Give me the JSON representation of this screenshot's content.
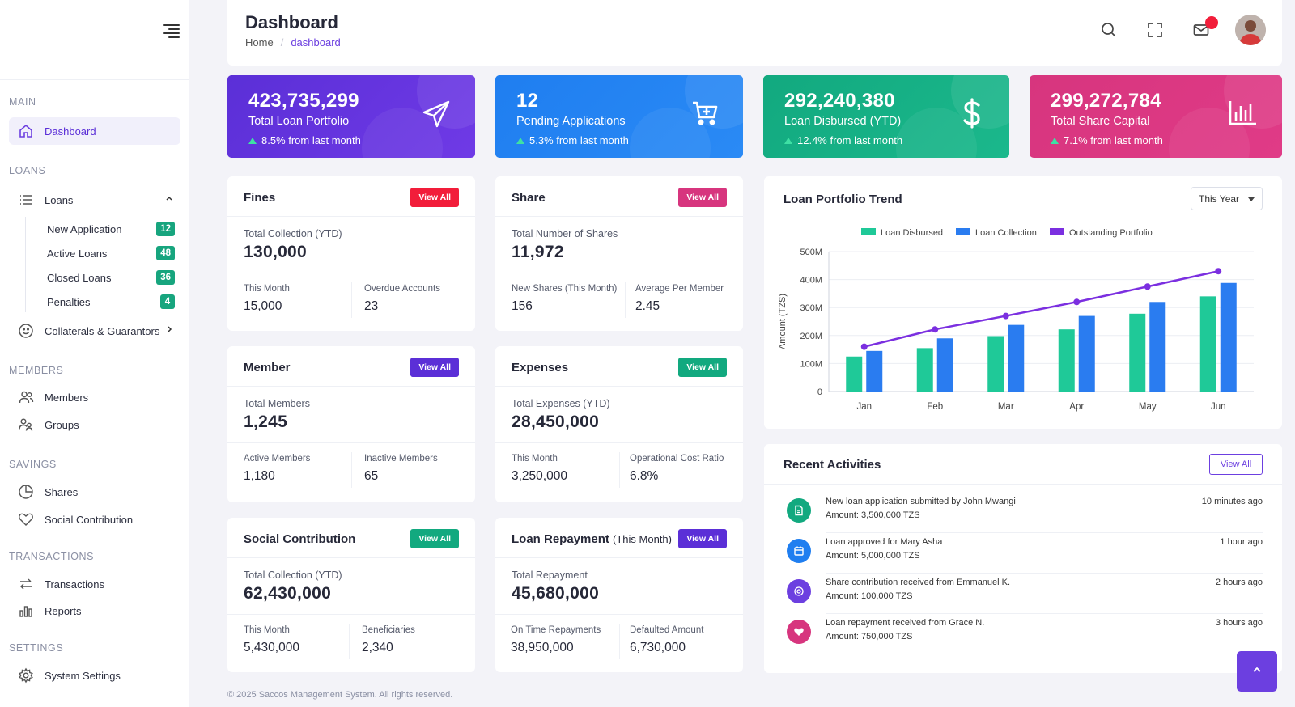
{
  "sidebar": {
    "sections": {
      "main": "MAIN",
      "loans": "LOANS",
      "members": "MEMBERS",
      "savings": "SAVINGS",
      "transactions": "TRANSACTIONS",
      "settings": "SETTINGS"
    },
    "items": {
      "dashboard": "Dashboard",
      "loans": "Loans",
      "collaterals": "Collaterals & Guarantors",
      "members": "Members",
      "groups": "Groups",
      "shares": "Shares",
      "social": "Social Contribution",
      "transactions": "Transactions",
      "reports": "Reports",
      "system_settings": "System Settings"
    },
    "loan_subitems": [
      {
        "label": "New Application",
        "count": "12"
      },
      {
        "label": "Active Loans",
        "count": "48"
      },
      {
        "label": "Closed Loans",
        "count": "36"
      },
      {
        "label": "Penalties",
        "count": "4"
      }
    ]
  },
  "header": {
    "title": "Dashboard",
    "breadcrumb_home": "Home",
    "breadcrumb_sep": "/",
    "breadcrumb_current": "dashboard"
  },
  "stats": [
    {
      "value": "423,735,299",
      "label": "Total Loan Portfolio",
      "change": "8.5% from last month",
      "icon": "paper-plane-icon",
      "color_from": "#5b2fd7",
      "color_to": "#6f3ae6"
    },
    {
      "value": "12",
      "label": "Pending Applications",
      "change": "5.3% from last month",
      "icon": "cart-plus-icon",
      "color_from": "#1f7ef0",
      "color_to": "#2a8af5"
    },
    {
      "value": "292,240,380",
      "label": "Loan Disbursed (YTD)",
      "change": "12.4% from last month",
      "icon": "dollar-icon",
      "color_from": "#12a97f",
      "color_to": "#1bb88c"
    },
    {
      "value": "299,272,784",
      "label": "Total Share Capital",
      "change": "7.1% from last month",
      "icon": "bar-chart-icon",
      "color_from": "#d7357e",
      "color_to": "#e03b87"
    }
  ],
  "cards": {
    "fines": {
      "title": "Fines",
      "btn": "View All",
      "total_label": "Total Collection (YTD)",
      "total": "130,000",
      "s1_label": "This Month",
      "s1": "15,000",
      "s2_label": "Overdue Accounts",
      "s2": "23"
    },
    "share": {
      "title": "Share",
      "btn": "View All",
      "total_label": "Total Number of Shares",
      "total": "11,972",
      "s1_label": "New Shares (This Month)",
      "s1": "156",
      "s2_label": "Average Per Member",
      "s2": "2.45"
    },
    "member": {
      "title": "Member",
      "btn": "View All",
      "total_label": "Total Members",
      "total": "1,245",
      "s1_label": "Active Members",
      "s1": "1,180",
      "s2_label": "Inactive Members",
      "s2": "65"
    },
    "expenses": {
      "title": "Expenses",
      "btn": "View All",
      "total_label": "Total Expenses (YTD)",
      "total": "28,450,000",
      "s1_label": "This Month",
      "s1": "3,250,000",
      "s2_label": "Operational Cost Ratio",
      "s2": "6.8%"
    },
    "social": {
      "title": "Social Contribution",
      "btn": "View All",
      "total_label": "Total Collection (YTD)",
      "total": "62,430,000",
      "s1_label": "This Month",
      "s1": "5,430,000",
      "s2_label": "Beneficiaries",
      "s2": "2,340"
    },
    "repayment": {
      "title": "Loan Repayment",
      "title_sub": "(This Month)",
      "btn": "View All",
      "total_label": "Total Repayment",
      "total": "45,680,000",
      "s1_label": "On Time Repayments",
      "s1": "38,950,000",
      "s2_label": "Defaulted Amount",
      "s2": "6,730,000"
    }
  },
  "trend": {
    "title": "Loan Portfolio Trend",
    "period": "This Year"
  },
  "chart_data": {
    "type": "bar",
    "categories": [
      "Jan",
      "Feb",
      "Mar",
      "Apr",
      "May",
      "Jun"
    ],
    "series": [
      {
        "name": "Loan Disbursed",
        "type": "bar",
        "color": "#1fc998",
        "values": [
          125,
          155,
          198,
          222,
          278,
          340
        ]
      },
      {
        "name": "Loan Collection",
        "type": "bar",
        "color": "#2a7cf0",
        "values": [
          145,
          190,
          238,
          270,
          320,
          388
        ]
      },
      {
        "name": "Outstanding Portfolio",
        "type": "line",
        "color": "#7b2fe0",
        "values": [
          160,
          222,
          270,
          320,
          375,
          430
        ]
      }
    ],
    "ylabel": "Amount (TZS)",
    "ylim": [
      0,
      500
    ],
    "yticks": [
      "0",
      "100M",
      "200M",
      "300M",
      "400M",
      "500M"
    ],
    "legend_position": "top",
    "grid": true
  },
  "activities": {
    "title": "Recent Activities",
    "btn": "View All",
    "items": [
      {
        "text": "New loan application submitted by John Mwangi",
        "amount": "Amount: 3,500,000 TZS",
        "time": "10 minutes ago",
        "color": "#12a97f",
        "icon": "document-icon"
      },
      {
        "text": "Loan approved for Mary Asha",
        "amount": "Amount: 5,000,000 TZS",
        "time": "1 hour ago",
        "color": "#1f7ef0",
        "icon": "calendar-icon"
      },
      {
        "text": "Share contribution received from Emmanuel K.",
        "amount": "Amount: 100,000 TZS",
        "time": "2 hours ago",
        "color": "#6c3fe0",
        "icon": "gear-icon"
      },
      {
        "text": "Loan repayment received from Grace N.",
        "amount": "Amount: 750,000 TZS",
        "time": "3 hours ago",
        "color": "#d7357e",
        "icon": "heart-icon"
      }
    ]
  },
  "footer": "© 2025 Saccos Management System. All rights reserved."
}
